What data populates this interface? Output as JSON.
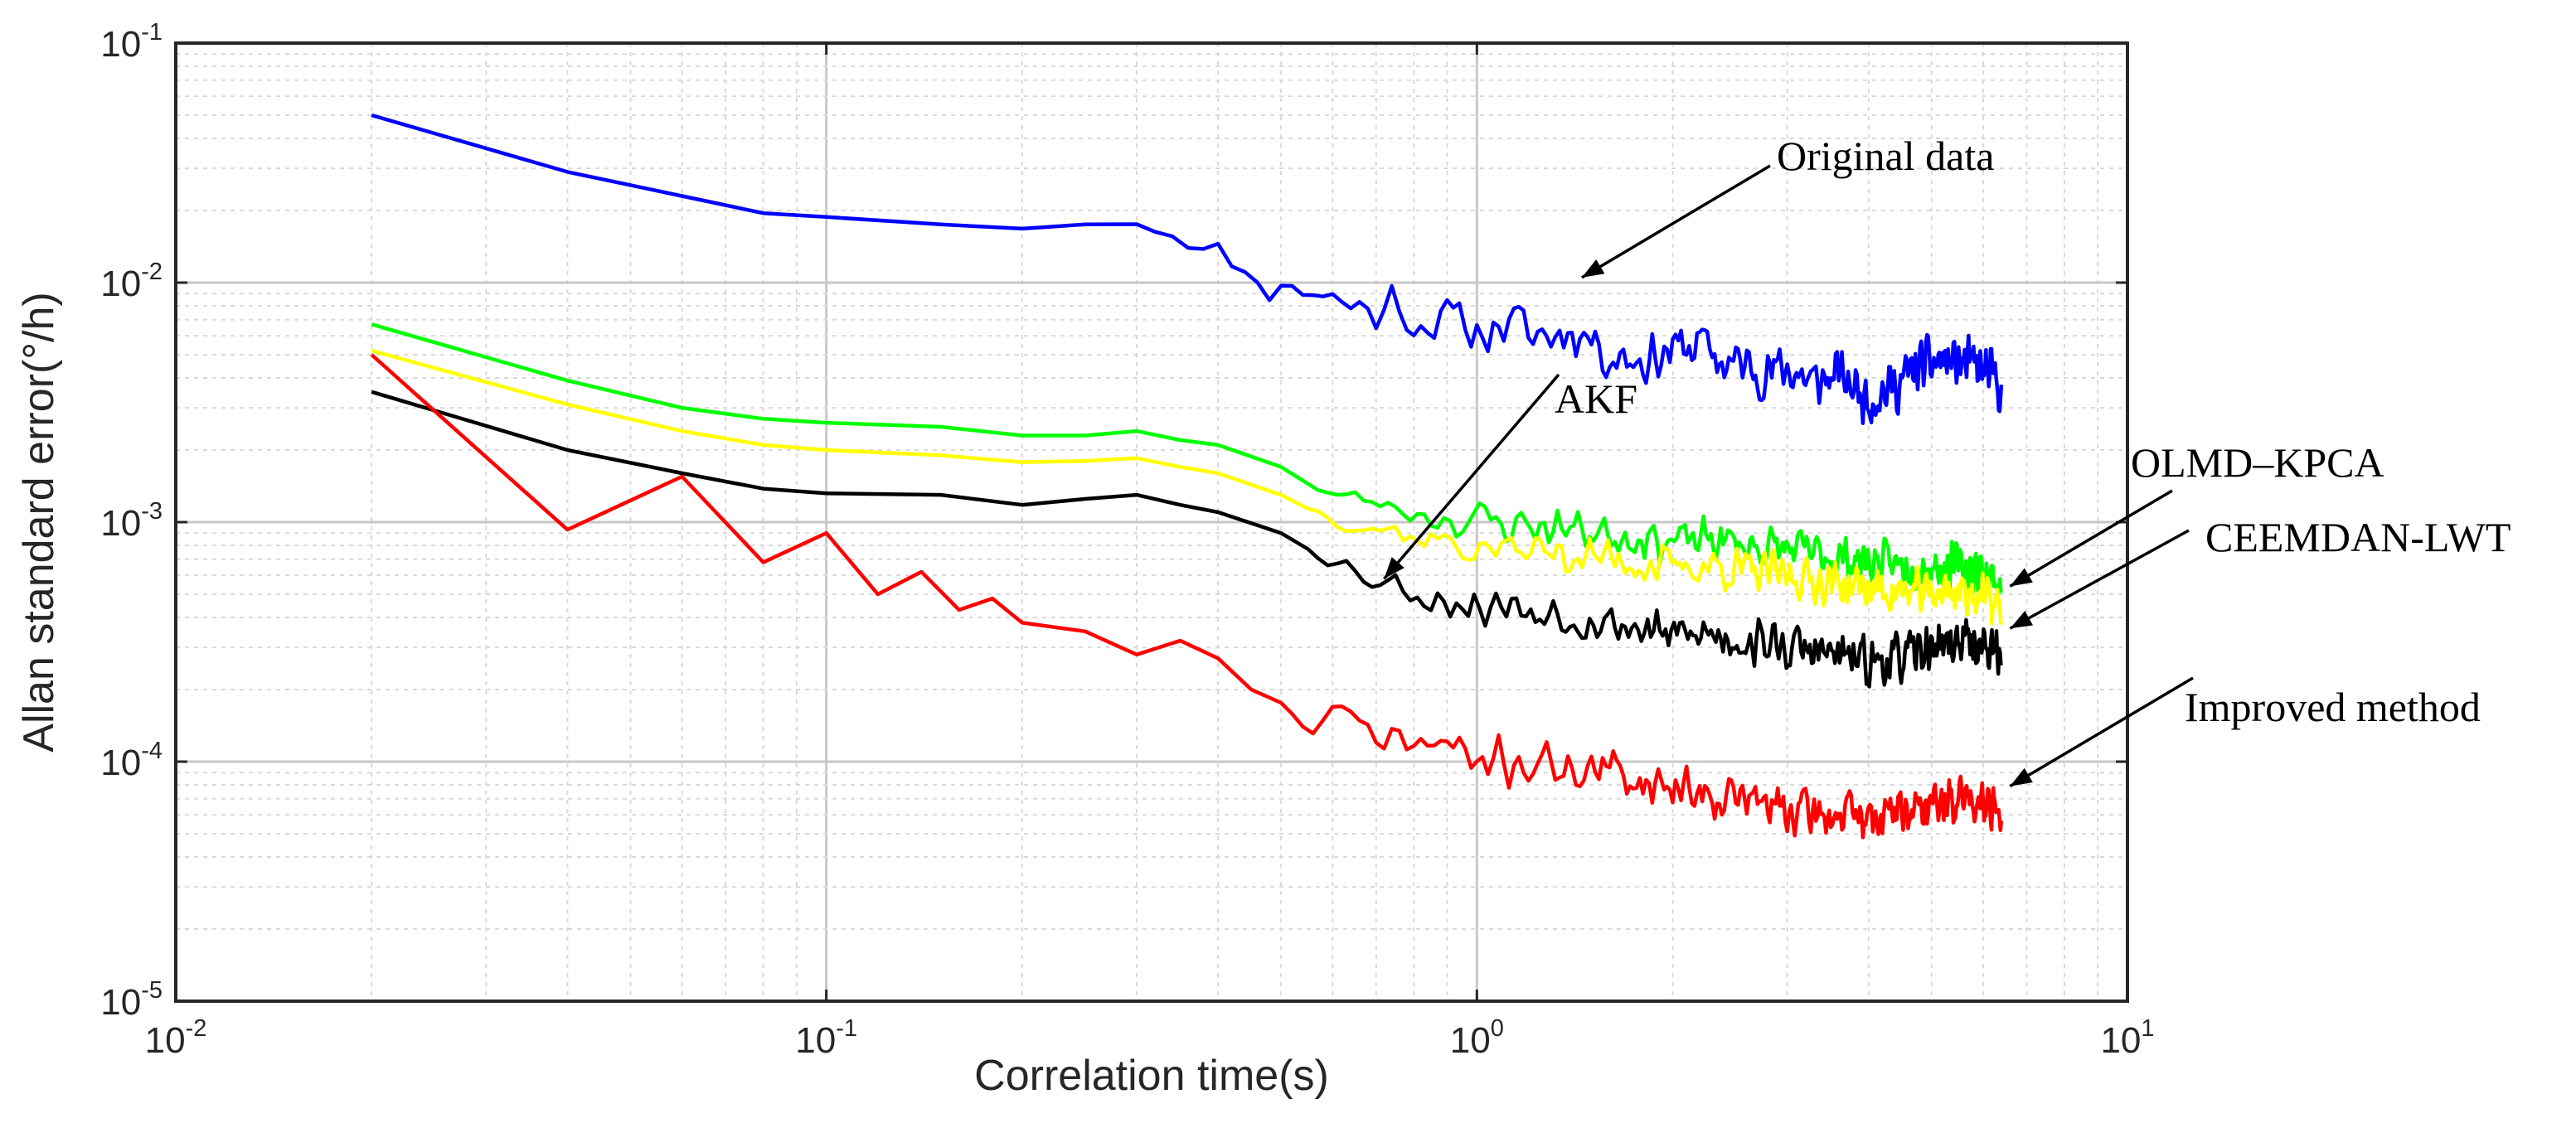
{
  "chart_data": {
    "type": "line",
    "x_scale": "log",
    "y_scale": "log",
    "xlabel": "Correlation time(s)",
    "ylabel": "Allan standard error(°/h)",
    "xlim": [
      0.01,
      10
    ],
    "ylim": [
      1e-05,
      0.1
    ],
    "grid": true,
    "x_ticks": [
      {
        "base": "10",
        "exp": "-2",
        "value": 0.01
      },
      {
        "base": "10",
        "exp": "-1",
        "value": 0.1
      },
      {
        "base": "10",
        "exp": "0",
        "value": 1
      },
      {
        "base": "10",
        "exp": "1",
        "value": 10
      }
    ],
    "y_ticks": [
      {
        "base": "10",
        "exp": "-1",
        "value": 0.1
      },
      {
        "base": "10",
        "exp": "-2",
        "value": 0.01
      },
      {
        "base": "10",
        "exp": "-3",
        "value": 0.001
      },
      {
        "base": "10",
        "exp": "-4",
        "value": 0.0001
      },
      {
        "base": "10",
        "exp": "-5",
        "value": 1e-05
      }
    ],
    "series": [
      {
        "name": "Original data",
        "color": "#0000ff",
        "points": [
          [
            0.02,
            0.05
          ],
          [
            0.04,
            0.029
          ],
          [
            0.06,
            0.023
          ],
          [
            0.08,
            0.0195
          ],
          [
            0.1,
            0.0188
          ],
          [
            0.15,
            0.0175
          ],
          [
            0.2,
            0.0168
          ],
          [
            0.25,
            0.0175
          ],
          [
            0.3,
            0.018
          ],
          [
            0.35,
            0.016
          ],
          [
            0.4,
            0.013
          ],
          [
            0.45,
            0.011
          ],
          [
            0.5,
            0.0095
          ],
          [
            0.55,
            0.01
          ],
          [
            0.6,
            0.0085
          ],
          [
            0.65,
            0.008
          ],
          [
            0.7,
            0.0075
          ],
          [
            0.75,
            0.0085
          ],
          [
            0.8,
            0.0072
          ],
          [
            0.9,
            0.0068
          ],
          [
            1.0,
            0.0063
          ],
          [
            1.1,
            0.0067
          ],
          [
            1.2,
            0.0062
          ],
          [
            1.3,
            0.006
          ],
          [
            1.4,
            0.0065
          ],
          [
            1.5,
            0.0058
          ],
          [
            1.6,
            0.005
          ],
          [
            1.8,
            0.0048
          ],
          [
            2.0,
            0.0052
          ],
          [
            2.2,
            0.0056
          ],
          [
            2.4,
            0.0046
          ],
          [
            2.6,
            0.0045
          ],
          [
            2.8,
            0.0042
          ],
          [
            3.0,
            0.0044
          ],
          [
            3.3,
            0.0038
          ],
          [
            3.6,
            0.0041
          ],
          [
            4.0,
            0.0033
          ],
          [
            4.4,
            0.0037
          ],
          [
            4.8,
            0.0045
          ],
          [
            5.2,
            0.0047
          ],
          [
            5.6,
            0.0046
          ],
          [
            6.0,
            0.0043
          ],
          [
            6.4,
            0.0037
          ]
        ],
        "noise": 0.24,
        "noise_start": 0.3,
        "seed": 11
      },
      {
        "name": "OLMD–KPCA",
        "color": "#00ff00",
        "points": [
          [
            0.02,
            0.0067
          ],
          [
            0.04,
            0.0039
          ],
          [
            0.06,
            0.003
          ],
          [
            0.08,
            0.0027
          ],
          [
            0.1,
            0.0026
          ],
          [
            0.15,
            0.0025
          ],
          [
            0.2,
            0.0023
          ],
          [
            0.25,
            0.0023
          ],
          [
            0.3,
            0.0024
          ],
          [
            0.35,
            0.0022
          ],
          [
            0.4,
            0.0021
          ],
          [
            0.5,
            0.0017
          ],
          [
            0.6,
            0.0013
          ],
          [
            0.7,
            0.0012
          ],
          [
            0.8,
            0.0011
          ],
          [
            0.9,
            0.00105
          ],
          [
            1.0,
            0.001
          ],
          [
            1.2,
            0.00098
          ],
          [
            1.4,
            0.00095
          ],
          [
            1.6,
            0.0009
          ],
          [
            1.8,
            0.00088
          ],
          [
            2.0,
            0.00082
          ],
          [
            2.3,
            0.00085
          ],
          [
            2.6,
            0.0008
          ],
          [
            3.0,
            0.00077
          ],
          [
            3.5,
            0.00072
          ],
          [
            4.0,
            0.00068
          ],
          [
            4.5,
            0.00066
          ],
          [
            5.0,
            0.00065
          ],
          [
            5.5,
            0.00066
          ],
          [
            6.0,
            0.00062
          ],
          [
            6.4,
            0.00055
          ]
        ],
        "noise": 0.2,
        "noise_start": 0.55,
        "seed": 23
      },
      {
        "name": "CEEMDAN-LWT",
        "color": "#ffff00",
        "points": [
          [
            0.02,
            0.0052
          ],
          [
            0.04,
            0.0031
          ],
          [
            0.06,
            0.0024
          ],
          [
            0.08,
            0.0021
          ],
          [
            0.1,
            0.002
          ],
          [
            0.15,
            0.0019
          ],
          [
            0.2,
            0.00178
          ],
          [
            0.25,
            0.0018
          ],
          [
            0.3,
            0.00185
          ],
          [
            0.35,
            0.0017
          ],
          [
            0.4,
            0.0016
          ],
          [
            0.5,
            0.0013
          ],
          [
            0.6,
            0.00105
          ],
          [
            0.7,
            0.00095
          ],
          [
            0.8,
            0.00088
          ],
          [
            0.9,
            0.00082
          ],
          [
            1.0,
            0.00078
          ],
          [
            1.2,
            0.00076
          ],
          [
            1.4,
            0.00074
          ],
          [
            1.6,
            0.0007
          ],
          [
            1.8,
            0.00068
          ],
          [
            2.0,
            0.00064
          ],
          [
            2.3,
            0.00066
          ],
          [
            2.6,
            0.00062
          ],
          [
            3.0,
            0.0006
          ],
          [
            3.5,
            0.00056
          ],
          [
            4.0,
            0.00053
          ],
          [
            4.5,
            0.00051
          ],
          [
            5.0,
            0.00051
          ],
          [
            5.5,
            0.00052
          ],
          [
            6.0,
            0.00049
          ],
          [
            6.4,
            0.00044
          ]
        ],
        "noise": 0.2,
        "noise_start": 0.55,
        "seed": 37
      },
      {
        "name": "AKF",
        "color": "#000000",
        "points": [
          [
            0.02,
            0.0035
          ],
          [
            0.04,
            0.002
          ],
          [
            0.06,
            0.0016
          ],
          [
            0.08,
            0.00138
          ],
          [
            0.1,
            0.00132
          ],
          [
            0.15,
            0.0013
          ],
          [
            0.2,
            0.00118
          ],
          [
            0.25,
            0.00125
          ],
          [
            0.3,
            0.0013
          ],
          [
            0.35,
            0.00118
          ],
          [
            0.4,
            0.0011
          ],
          [
            0.5,
            0.0009
          ],
          [
            0.6,
            0.0007
          ],
          [
            0.7,
            0.00058
          ],
          [
            0.8,
            0.00052
          ],
          [
            0.9,
            0.00048
          ],
          [
            1.0,
            0.00045
          ],
          [
            1.2,
            0.00044
          ],
          [
            1.4,
            0.00042
          ],
          [
            1.6,
            0.00038
          ],
          [
            1.8,
            0.00036
          ],
          [
            2.0,
            0.00033
          ],
          [
            2.3,
            0.00034
          ],
          [
            2.6,
            0.00032
          ],
          [
            3.0,
            0.0003
          ],
          [
            3.5,
            0.00028
          ],
          [
            4.0,
            0.00026
          ],
          [
            4.5,
            0.00027
          ],
          [
            5.0,
            0.0003
          ],
          [
            5.5,
            0.00032
          ],
          [
            6.0,
            0.00031
          ],
          [
            6.4,
            0.00027
          ]
        ],
        "noise": 0.22,
        "noise_start": 0.55,
        "seed": 53
      },
      {
        "name": "Improved method",
        "color": "#ff0000",
        "points": [
          [
            0.02,
            0.005
          ],
          [
            0.04,
            0.00093
          ],
          [
            0.06,
            0.00155
          ],
          [
            0.08,
            0.00068
          ],
          [
            0.1,
            0.0009
          ],
          [
            0.12,
            0.0005
          ],
          [
            0.14,
            0.00062
          ],
          [
            0.16,
            0.00043
          ],
          [
            0.18,
            0.00048
          ],
          [
            0.2,
            0.00038
          ],
          [
            0.25,
            0.00035
          ],
          [
            0.3,
            0.00028
          ],
          [
            0.35,
            0.00032
          ],
          [
            0.4,
            0.00027
          ],
          [
            0.45,
            0.0002
          ],
          [
            0.5,
            0.00018
          ],
          [
            0.55,
            0.00013
          ],
          [
            0.6,
            0.00016
          ],
          [
            0.7,
            0.00013
          ],
          [
            0.8,
            0.00012
          ],
          [
            0.9,
            0.000115
          ],
          [
            1.0,
            0.0001
          ],
          [
            1.2,
            0.0001
          ],
          [
            1.4,
            9.5e-05
          ],
          [
            1.6,
            9e-05
          ],
          [
            1.8,
            8.5e-05
          ],
          [
            2.0,
            8e-05
          ],
          [
            2.3,
            7.5e-05
          ],
          [
            2.6,
            7e-05
          ],
          [
            3.0,
            6.2e-05
          ],
          [
            3.5,
            6e-05
          ],
          [
            4.0,
            5.8e-05
          ],
          [
            4.5,
            6.2e-05
          ],
          [
            5.0,
            6.6e-05
          ],
          [
            5.5,
            7e-05
          ],
          [
            6.0,
            7.2e-05
          ],
          [
            6.4,
            6.2e-05
          ]
        ],
        "noise": 0.22,
        "noise_start": 0.5,
        "seed": 71
      }
    ],
    "annotations": [
      {
        "text": "Original data",
        "arrow_to": [
          1.45,
          0.0105
        ]
      },
      {
        "text": "AKF",
        "arrow_to": [
          0.72,
          0.00058
        ]
      },
      {
        "text": "OLMD–KPCA",
        "arrow_to": [
          6.6,
          0.00054
        ]
      },
      {
        "text": "CEEMDAN-LWT",
        "arrow_to": [
          6.6,
          0.00036
        ]
      },
      {
        "text": "Improved method",
        "arrow_to": [
          6.6,
          7.9e-05
        ]
      }
    ]
  }
}
